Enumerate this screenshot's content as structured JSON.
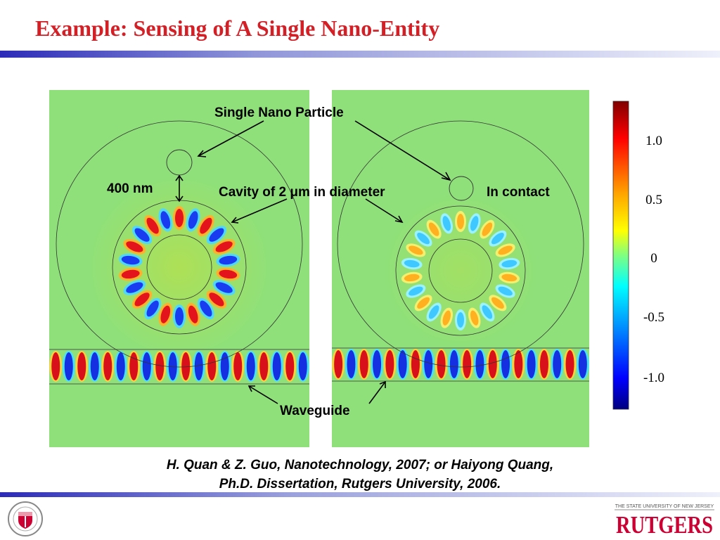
{
  "slide": {
    "title": "Example: Sensing of A Single Nano-Entity"
  },
  "colorbar": {
    "ticks": [
      "1.0",
      "0.5",
      "0",
      "-0.5",
      "-1.0"
    ]
  },
  "annotations": {
    "particle": "Single Nano Particle",
    "gap": "400 nm",
    "cavity": "Cavity of 2 μm in diameter",
    "contact": "In contact",
    "waveguide": "Waveguide"
  },
  "citation": {
    "line1": "H. Quan & Z. Guo, Nanotechnology, 2007; or Haiyong Quang,",
    "line2": "Ph.D. Dissertation, Rutgers University, 2006."
  },
  "logos": {
    "left_seal": "RUTGERS ENGINEERING",
    "right_top": "THE STATE UNIVERSITY OF NEW JERSEY",
    "right_main": "RUTGERS"
  },
  "colors": {
    "title": "#d31f26",
    "accent": "#cc0033",
    "bar": "#2b2bb8",
    "field_bg": "#8fe07a"
  }
}
